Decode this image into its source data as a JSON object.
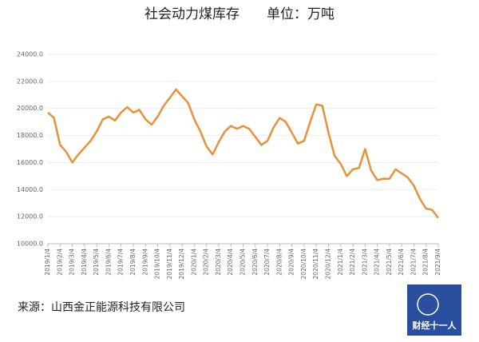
{
  "chart_data": {
    "type": "line",
    "title": "社会动力煤库存　　单位：万吨",
    "categories": [
      "2019/1/4",
      null,
      "2019/2/4",
      null,
      "2019/3/4",
      null,
      "2019/4/4",
      null,
      "2019/5/4",
      null,
      "2019/6/4",
      null,
      "2019/7/4",
      null,
      "2019/8/4",
      null,
      "2019/9/4",
      null,
      "2019/10/4",
      null,
      "2019/11/4",
      null,
      "2019/12/4",
      null,
      "2020/1/4",
      null,
      "2020/2/4",
      null,
      "2020/3/4",
      null,
      "2020/4/4",
      null,
      "2020/5/4",
      null,
      "2020/6/4",
      null,
      "2020/7/4",
      null,
      "2020/8/4",
      null,
      "2020/9/4",
      null,
      "2020/10/4",
      null,
      "2020/11/4",
      null,
      "2020/12/4",
      null,
      "2021/1/4",
      null,
      "2021/2/4",
      null,
      "2021/3/4",
      null,
      "2021/4/4",
      null,
      "2021/5/4",
      null,
      "2021/6/4",
      null,
      "2021/7/4",
      null,
      "2021/8/4",
      null,
      "2021/9/4"
    ],
    "values": [
      19700,
      19300,
      17300,
      16800,
      16000,
      16600,
      17100,
      17600,
      18300,
      19200,
      19400,
      19100,
      19700,
      20100,
      19700,
      19900,
      19200,
      18800,
      19400,
      20200,
      20800,
      21400,
      20900,
      20400,
      19200,
      18300,
      17200,
      16600,
      17500,
      18300,
      18700,
      18500,
      18700,
      18500,
      17900,
      17300,
      17600,
      18600,
      19300,
      19000,
      18200,
      17400,
      17600,
      19000,
      20300,
      20200,
      18200,
      16500,
      15900,
      15000,
      15500,
      15600,
      17000,
      15400,
      14700,
      14800,
      14800,
      15500,
      15200,
      14900,
      14300,
      13300,
      12600,
      12500,
      11900
    ],
    "color": "#e8913a",
    "ylim": [
      10000,
      24000
    ],
    "yticks": [
      {
        "value": 10000,
        "label": "10000.0"
      },
      {
        "value": 12000,
        "label": "12000.0"
      },
      {
        "value": 14000,
        "label": "14000.0"
      },
      {
        "value": 16000,
        "label": "16000.0"
      },
      {
        "value": 18000,
        "label": "18000.0"
      },
      {
        "value": 20000,
        "label": "20000.0"
      },
      {
        "value": 22000,
        "label": "22000.0"
      },
      {
        "value": 24000,
        "label": "24000.0"
      }
    ],
    "grid": true,
    "source": "来源：山西金正能源科技有限公司",
    "watermark": "财经十一人"
  }
}
